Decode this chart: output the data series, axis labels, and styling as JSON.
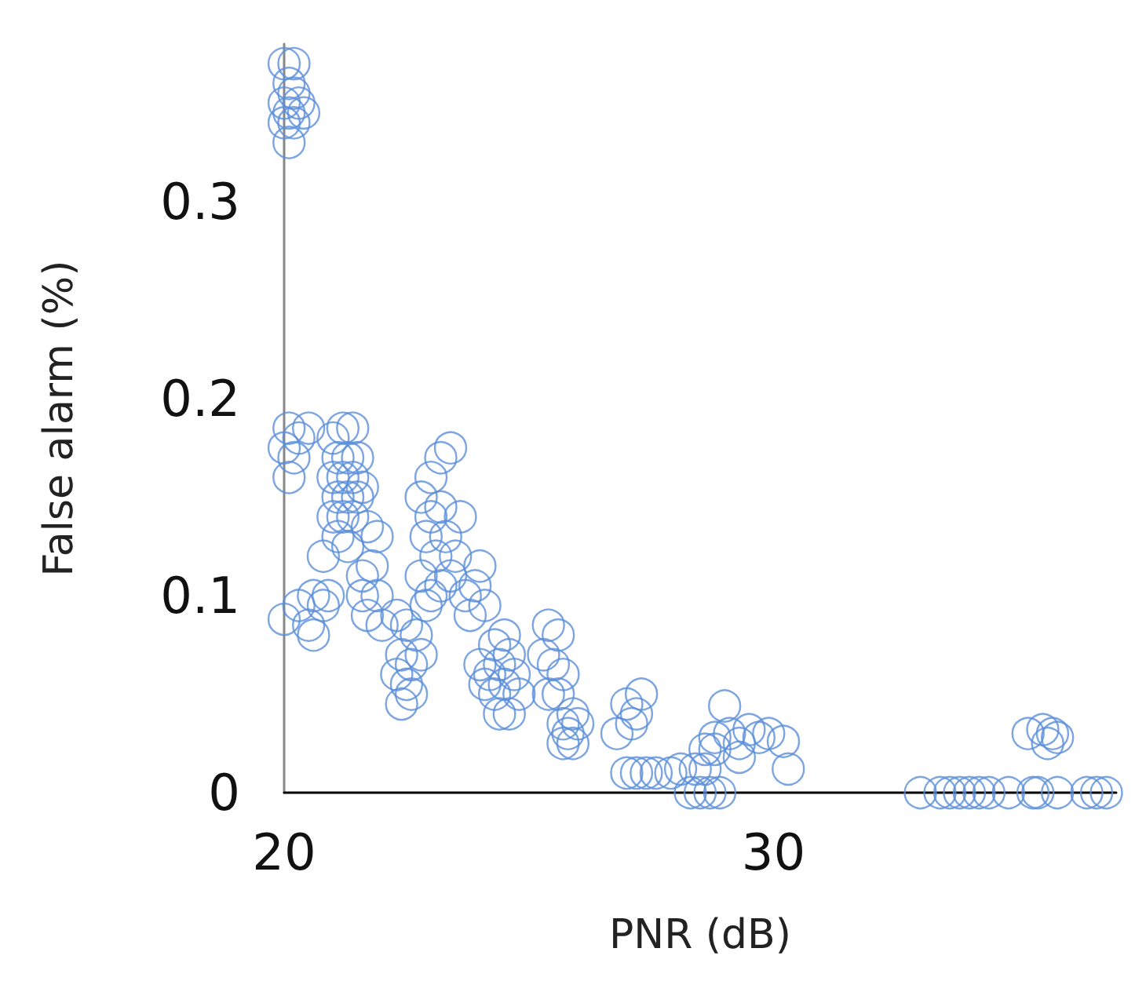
{
  "chart_data": {
    "type": "scatter",
    "xlabel": "PNR (dB)",
    "ylabel": "False alarm (%)",
    "xlim": [
      20,
      37
    ],
    "xticks": [
      20,
      30
    ],
    "ylim": [
      0,
      0.38
    ],
    "yticks": [
      0,
      0.1,
      0.2,
      0.3
    ],
    "grid": false,
    "marker": "circle",
    "series": [
      {
        "color": "#5b8fd9",
        "x": [
          20.0,
          20.2,
          20.0,
          20.1,
          20.3,
          20.2,
          20.0,
          20.1,
          20.4,
          20.2,
          20.1,
          20.1,
          20.0,
          20.2,
          20.1,
          20.3,
          20.5,
          20.0,
          20.3,
          20.5,
          20.6,
          20.8,
          20.9,
          20.6,
          21.0,
          21.2,
          21.4,
          21.1,
          21.3,
          21.5,
          21.0,
          21.2,
          21.4,
          21.1,
          21.3,
          21.5,
          21.0,
          21.2,
          21.4,
          21.1,
          21.3,
          20.8,
          21.6,
          21.7,
          21.9,
          21.6,
          21.8,
          21.6,
          21.9,
          21.7,
          22.0,
          22.3,
          22.5,
          22.7,
          22.4,
          22.6,
          22.3,
          22.5,
          22.8,
          22.4,
          22.6,
          22.8,
          23.0,
          23.2,
          23.4,
          23.0,
          23.2,
          22.9,
          23.1,
          23.3,
          22.8,
          23.0,
          23.2,
          22.9,
          23.4,
          23.6,
          23.5,
          23.7,
          23.9,
          24.0,
          23.8,
          24.1,
          24.0,
          24.2,
          24.4,
          24.6,
          24.1,
          24.3,
          24.5,
          24.7,
          24.4,
          24.6,
          24.5,
          24.3,
          24.8,
          25.4,
          25.6,
          25.3,
          25.5,
          25.7,
          25.4,
          25.6,
          25.7,
          25.9,
          25.8,
          26.0,
          25.7,
          25.9,
          27.0,
          27.3,
          27.2,
          26.8,
          27.1,
          27.0,
          27.2,
          27.4,
          27.6,
          27.9,
          28.1,
          28.4,
          28.6,
          28.6,
          28.8,
          28.3,
          28.5,
          28.7,
          28.9,
          29.0,
          28.8,
          29.1,
          29.3,
          29.5,
          29.7,
          29.9,
          30.2,
          29.3,
          30.3,
          33.0,
          33.4,
          33.6,
          33.8,
          34.0,
          34.2,
          34.4,
          34.8,
          35.3,
          35.4,
          35.8,
          36.4,
          36.6,
          36.8,
          35.2,
          35.5,
          35.7,
          35.6,
          35.8
        ],
        "values": [
          0.37,
          0.37,
          0.35,
          0.345,
          0.35,
          0.34,
          0.34,
          0.33,
          0.345,
          0.355,
          0.36,
          0.185,
          0.175,
          0.17,
          0.16,
          0.18,
          0.185,
          0.088,
          0.095,
          0.085,
          0.08,
          0.095,
          0.1,
          0.1,
          0.18,
          0.185,
          0.185,
          0.17,
          0.17,
          0.17,
          0.16,
          0.16,
          0.16,
          0.15,
          0.15,
          0.15,
          0.14,
          0.14,
          0.14,
          0.13,
          0.125,
          0.12,
          0.155,
          0.135,
          0.13,
          0.11,
          0.115,
          0.1,
          0.1,
          0.09,
          0.085,
          0.09,
          0.085,
          0.08,
          0.07,
          0.065,
          0.06,
          0.055,
          0.07,
          0.045,
          0.05,
          0.15,
          0.16,
          0.17,
          0.175,
          0.14,
          0.145,
          0.13,
          0.12,
          0.13,
          0.11,
          0.1,
          0.105,
          0.095,
          0.11,
          0.14,
          0.12,
          0.1,
          0.105,
          0.115,
          0.09,
          0.095,
          0.065,
          0.06,
          0.065,
          0.07,
          0.055,
          0.05,
          0.055,
          0.06,
          0.04,
          0.04,
          0.08,
          0.075,
          0.05,
          0.085,
          0.08,
          0.07,
          0.065,
          0.06,
          0.05,
          0.05,
          0.035,
          0.04,
          0.03,
          0.035,
          0.025,
          0.025,
          0.045,
          0.05,
          0.04,
          0.03,
          0.035,
          0.01,
          0.01,
          0.01,
          0.01,
          0.01,
          0.012,
          0.012,
          0.012,
          0.022,
          0.022,
          0,
          0,
          0,
          0,
          0.044,
          0.028,
          0.03,
          0.025,
          0.032,
          0.028,
          0.03,
          0.026,
          0.018,
          0.012,
          0,
          0,
          0,
          0,
          0,
          0,
          0,
          0,
          0,
          0,
          0,
          0,
          0,
          0,
          0.03,
          0.032,
          0.03,
          0.025,
          0.028
        ]
      }
    ]
  }
}
